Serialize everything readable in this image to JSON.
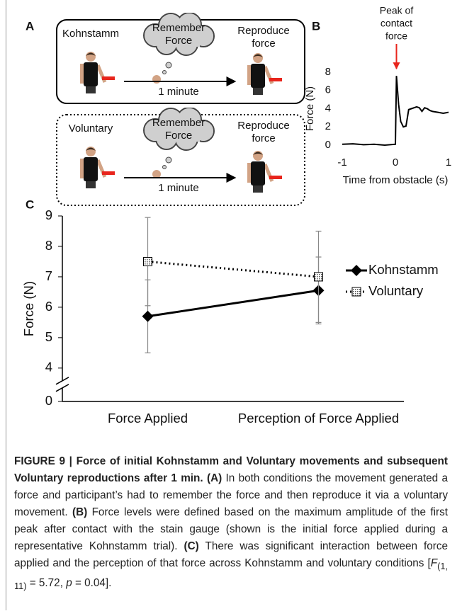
{
  "panel_a": {
    "label": "A",
    "boxes": [
      {
        "condition": "Kohnstamm",
        "thought": [
          "Remember",
          "Force"
        ],
        "outcome": [
          "Reproduce",
          "force"
        ],
        "interval": "1 minute",
        "border": "solid"
      },
      {
        "condition": "Voluntary",
        "thought": [
          "Remember",
          "Force"
        ],
        "outcome": [
          "Reproduce",
          "force"
        ],
        "interval": "1 minute",
        "border": "dotted"
      }
    ]
  },
  "chart_data": [
    {
      "type": "line",
      "label": "B",
      "annotation": [
        "Peak of",
        "contact",
        "force"
      ],
      "annotation_color": "#e8251c",
      "x": [
        -1,
        -0.8,
        -0.6,
        -0.4,
        -0.2,
        0,
        0.02,
        0.06,
        0.1,
        0.15,
        0.2,
        0.25,
        0.3,
        0.4,
        0.45,
        0.5,
        0.55,
        0.6,
        0.65,
        0.7,
        0.8,
        0.9,
        1
      ],
      "series": [
        {
          "color": "#000000",
          "values": [
            0.1,
            0.15,
            0.05,
            0.1,
            0.0,
            0.1,
            7.6,
            4.5,
            2.6,
            2.0,
            2.1,
            3.9,
            4.0,
            4.2,
            4.1,
            3.7,
            4.1,
            4.0,
            3.8,
            3.7,
            3.6,
            3.5,
            3.6
          ]
        }
      ],
      "xlim": [
        -1,
        1
      ],
      "xticks": [
        -1,
        0,
        1
      ],
      "ylim": [
        0,
        8
      ],
      "yticks": [
        0,
        2,
        4,
        6,
        8
      ],
      "xlabel": "Time from obstacle  (s)",
      "ylabel": "Force (N)",
      "axis_lines": false
    },
    {
      "type": "line",
      "label": "C",
      "categories": [
        "Force Applied",
        "Perception of Force Applied"
      ],
      "series": [
        {
          "name": "Kohnstamm",
          "color": "#000000",
          "values": [
            5.7,
            6.55
          ],
          "errors": [
            1.2,
            1.1
          ],
          "line_style": "solid",
          "marker": "diamond"
        },
        {
          "name": "Voluntary",
          "color": "#000000",
          "values": [
            7.5,
            7.0
          ],
          "errors": [
            1.45,
            1.5
          ],
          "line_style": "dotted",
          "marker": "square"
        }
      ],
      "ylim": [
        0,
        9
      ],
      "yticks": [
        0,
        4,
        5,
        6,
        7,
        8,
        9
      ],
      "axis_break": [
        0,
        4
      ],
      "ylabel": "Force (N)",
      "axis_lines": true,
      "legend": "right"
    }
  ],
  "caption": [
    {
      "text": "FIGURE 9 | Force of initial Kohnstamm and Voluntary movements and subsequent Voluntary reproductions after 1 min.",
      "style": "bold"
    },
    {
      "text": " ",
      "style": "normal"
    },
    {
      "text": "(A)",
      "style": "bold"
    },
    {
      "text": " In both conditions the movement generated a force and participant’s had to remember the force and then reproduce it via a voluntary movement. ",
      "style": "normal"
    },
    {
      "text": "(B)",
      "style": "bold"
    },
    {
      "text": " Force levels were defined based on the maximum amplitude of the first peak after contact with the stain gauge (shown is the initial force applied during a representative Kohnstamm trial). ",
      "style": "normal"
    },
    {
      "text": "(C)",
      "style": "bold"
    },
    {
      "text": " There was significant interaction between force applied and the perception of that force across Kohnstamm and voluntary conditions [",
      "style": "normal"
    },
    {
      "text": "F",
      "style": "italic"
    },
    {
      "text": "(1,  11)",
      "style": "sub"
    },
    {
      "text": " = 5.72, ",
      "style": "normal"
    },
    {
      "text": "p",
      "style": "italic"
    },
    {
      "text": " = 0.04].",
      "style": "normal"
    }
  ]
}
